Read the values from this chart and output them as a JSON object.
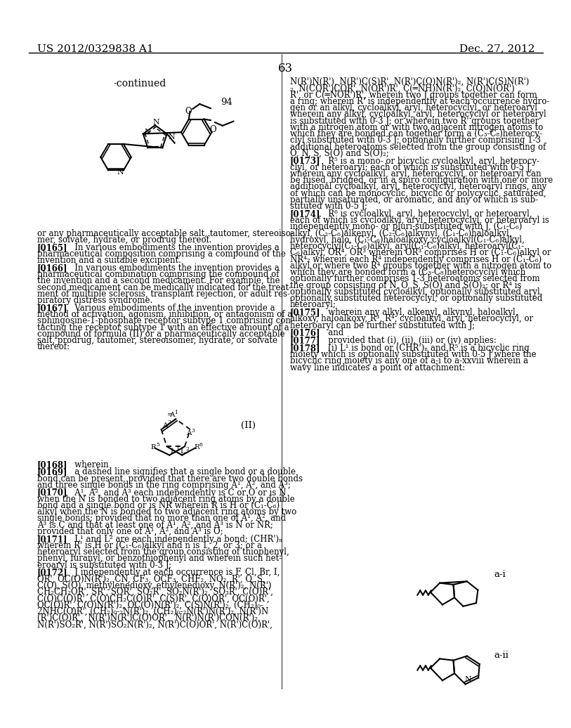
{
  "page_number": "63",
  "patent_number": "US 2012/0329838 A1",
  "patent_date": "Dec. 27, 2012",
  "background_color": "#ffffff",
  "text_color": "#000000",
  "continued_label": "-continued",
  "compound_number_top": "94",
  "formula_label": "(II)"
}
